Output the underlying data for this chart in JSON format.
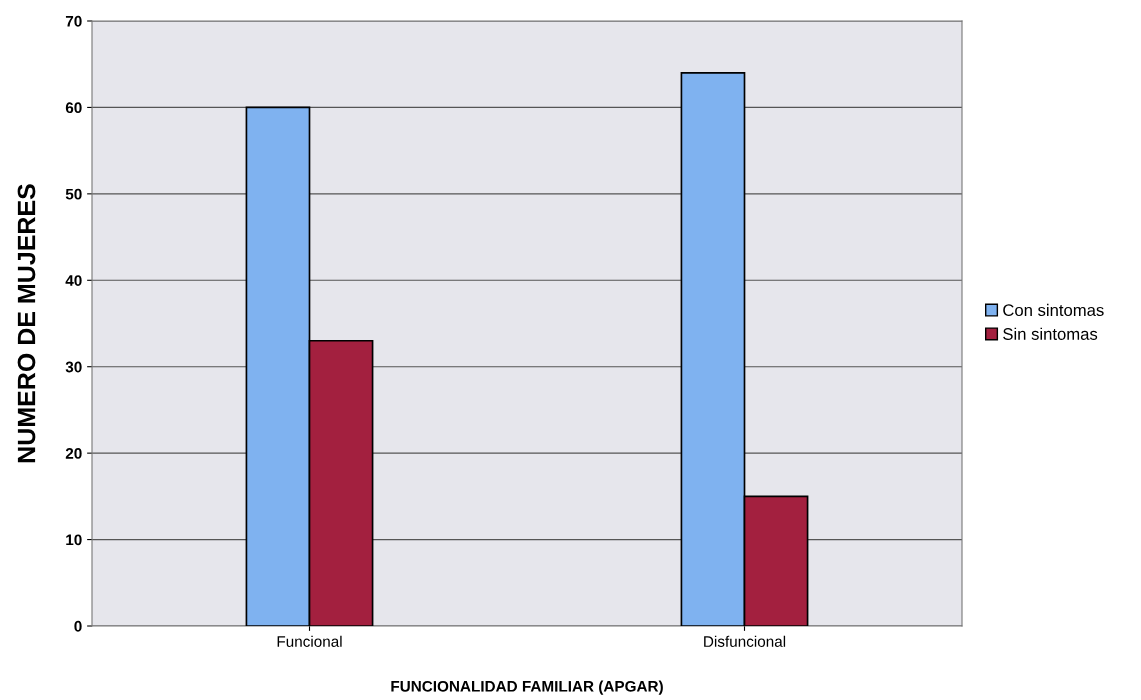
{
  "chart_data": {
    "type": "bar",
    "xlabel": "FUNCIONALIDAD FAMILIAR (APGAR)",
    "ylabel": "NUMERO DE MUJERES",
    "categories": [
      "Funcional",
      "Disfuncional"
    ],
    "series": [
      {
        "name": "Con sintomas",
        "color": "#7fb2f0",
        "values": [
          60,
          64
        ]
      },
      {
        "name": "Sin sintomas",
        "color": "#a3203f",
        "values": [
          33,
          15
        ]
      }
    ],
    "ylim": [
      0,
      70
    ],
    "yticks": [
      0,
      10,
      20,
      30,
      40,
      50,
      60,
      70
    ],
    "grid": "y",
    "legend": "right"
  }
}
